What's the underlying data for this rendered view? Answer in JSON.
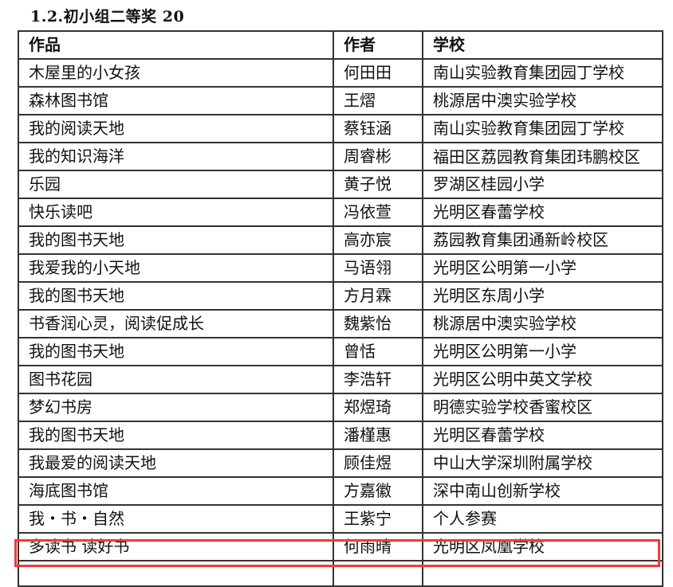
{
  "section_title": "1.2.初小组二等奖 20",
  "table": {
    "headers": [
      "作品",
      "作者",
      "学校"
    ],
    "rows": [
      [
        "木屋里的小女孩",
        "何田田",
        "南山实验教育集团园丁学校"
      ],
      [
        "森林图书馆",
        "王熠",
        "桃源居中澳实验学校"
      ],
      [
        "我的阅读天地",
        "蔡钰涵",
        "南山实验教育集团园丁学校"
      ],
      [
        "我的知识海洋",
        "周睿彬",
        "福田区荔园教育集团玮鹏校区"
      ],
      [
        "乐园",
        "黄子悦",
        "罗湖区桂园小学"
      ],
      [
        "快乐读吧",
        "冯依萱",
        "光明区春蕾学校"
      ],
      [
        "我的图书天地",
        "高亦宸",
        "荔园教育集团通新岭校区"
      ],
      [
        "我爱我的小天地",
        "马语翎",
        "光明区公明第一小学"
      ],
      [
        "我的图书天地",
        "方月霖",
        "光明区东周小学"
      ],
      [
        "书香润心灵，阅读促成长",
        "魏紫怡",
        "桃源居中澳实验学校"
      ],
      [
        "我的图书天地",
        "曾恬",
        "光明区公明第一小学"
      ],
      [
        "图书花园",
        "李浩轩",
        "光明区公明中英文学校"
      ],
      [
        "梦幻书房",
        "郑煜琦",
        "明德实验学校香蜜校区"
      ],
      [
        "我的图书天地",
        "潘槿惠",
        "光明区春蕾学校"
      ],
      [
        "我最爱的阅读天地",
        "顾佳煜",
        "中山大学深圳附属学校"
      ],
      [
        "海底图书馆",
        "方嘉徽",
        "深中南山创新学校"
      ],
      [
        "我・书・自然",
        "王紫宁",
        "个人参赛"
      ],
      [
        "多读书 读好书",
        "何雨晴",
        "光明区凤凰学校"
      ]
    ],
    "highlighted_row": 18,
    "highlight_color": "#f03a3a"
  }
}
